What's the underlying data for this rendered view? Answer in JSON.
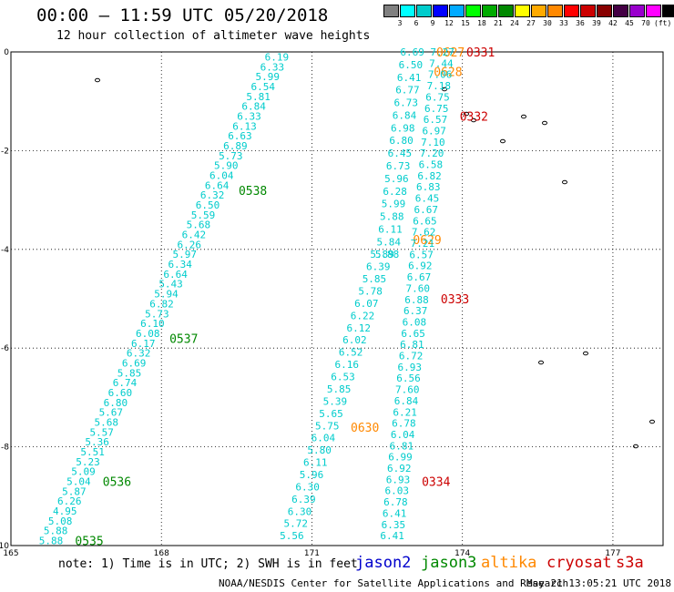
{
  "title": "00:00 — 11:59 UTC 05/20/2018",
  "subtitle": "12 hour collection of altimeter wave heights",
  "colorbar": {
    "colors": [
      "#808080",
      "#00ffff",
      "#00cccc",
      "#0000ff",
      "#00aaff",
      "#00ff00",
      "#00aa00",
      "#008800",
      "#ffff00",
      "#ffaa00",
      "#ff8800",
      "#ff0000",
      "#cc0000",
      "#880000",
      "#440044",
      "#9900cc",
      "#ff00ff",
      "#000000"
    ],
    "labels": [
      "3",
      "6",
      "9",
      "12",
      "15",
      "18",
      "21",
      "24",
      "27",
      "30",
      "33",
      "36",
      "39",
      "42",
      "45",
      "70",
      "(ft)"
    ]
  },
  "note": "note: 1) Time is in UTC; 2) SWH is in feet",
  "missions": [
    {
      "name": "jason2",
      "color": "#0000cc"
    },
    {
      "name": "jason3",
      "color": "#008800"
    },
    {
      "name": "altika",
      "color": "#ff8800"
    },
    {
      "name": "cryosat",
      "color": "#cc0000"
    },
    {
      "name": "s3a",
      "color": "#cc0000"
    }
  ],
  "credit": "NOAA/NESDIS Center for Satellite Applications and Research",
  "timestamp": "May 21 13:05:21 UTC 2018",
  "chart_data": {
    "type": "scatter",
    "x_ticks": [
      "165",
      "168",
      "171",
      "174",
      "177"
    ],
    "y_ticks": [
      "0",
      "-2",
      "-4",
      "-6",
      "-8",
      "-10"
    ],
    "xlim": [
      165,
      178
    ],
    "ylim": [
      -10,
      0
    ],
    "tracks": [
      {
        "mission": "jason3",
        "color": "#00cccc",
        "start": [
          170.3,
          -0.1
        ],
        "end": [
          165.8,
          -9.9
        ],
        "values": [
          "6.19",
          "6.33",
          "5.99",
          "6.54",
          "5.81",
          "6.84",
          "6.33",
          "6.13",
          "6.63",
          "6.89",
          "5.73",
          "5.90",
          "6.04",
          "6.64",
          "6.32",
          "6.50",
          "5.59",
          "5.68",
          "6.42",
          "6.26",
          "5.97",
          "6.34",
          "6.64",
          "5.43",
          "5.94",
          "6.82",
          "5.73",
          "6.10",
          "6.08",
          "6.17",
          "6.32",
          "6.69",
          "5.85",
          "6.74",
          "6.60",
          "6.80",
          "5.67",
          "5.68",
          "5.57",
          "5.36",
          "5.51",
          "5.23",
          "5.09",
          "5.04",
          "5.87",
          "6.26",
          "4.95",
          "5.08",
          "5.88",
          "5.88"
        ],
        "times": [
          {
            "label": "0538",
            "lat": -2.8
          },
          {
            "label": "0537",
            "lat": -5.8
          },
          {
            "label": "0536",
            "lat": -8.7
          },
          {
            "label": "0535",
            "lat": -9.9
          }
        ],
        "time_color": "#008800"
      },
      {
        "mission": "altika-1",
        "color": "#00cccc",
        "start": [
          173.0,
          0.0
        ],
        "end": [
          172.5,
          -4.1
        ],
        "values": [
          "6.69",
          "6.50",
          "6.41",
          "6.77",
          "6.73",
          "6.84",
          "6.98",
          "6.80",
          "6.45",
          "6.73",
          "5.96",
          "6.28",
          "5.99",
          "5.88",
          "6.11",
          "5.84",
          "5.88"
        ],
        "times": [
          {
            "label": "0627",
            "lat": 0.0
          },
          {
            "label": "0628",
            "lat": -0.4
          },
          {
            "label": "0629",
            "lat": -3.8
          }
        ],
        "time_color": "#ff8800"
      },
      {
        "mission": "altika-2",
        "color": "#00cccc",
        "start": [
          172.4,
          -4.1
        ],
        "end": [
          170.6,
          -9.8
        ],
        "values": [
          "5.89",
          "6.39",
          "5.85",
          "5.78",
          "6.07",
          "6.22",
          "6.12",
          "6.02",
          "6.52",
          "6.16",
          "6.53",
          "5.85",
          "5.39",
          "5.65",
          "5.75",
          "6.04",
          "5.80",
          "6.11",
          "5.96",
          "6.30",
          "6.39",
          "6.30",
          "5.72",
          "5.56"
        ],
        "times": [
          {
            "label": "0630",
            "lat": -7.6
          }
        ],
        "time_color": "#ff8800"
      },
      {
        "mission": "cryosat",
        "color": "#00cccc",
        "start": [
          173.6,
          0.0
        ],
        "end": [
          172.6,
          -9.8
        ],
        "values": [
          "7.27",
          "7.44",
          "7.06",
          "7.18",
          "6.75",
          "6.75",
          "6.57",
          "6.97",
          "7.10",
          "7.20",
          "6.58",
          "6.82",
          "6.83",
          "6.45",
          "6.67",
          "6.65",
          "7.62",
          "7.21",
          "6.57",
          "6.92",
          "6.67",
          "7.60",
          "6.88",
          "6.37",
          "6.08",
          "6.65",
          "6.81",
          "6.72",
          "6.93",
          "6.56",
          "7.60",
          "6.84",
          "6.21",
          "6.78",
          "6.04",
          "6.81",
          "6.99",
          "6.92",
          "6.93",
          "6.03",
          "6.78",
          "6.41",
          "6.35",
          "6.41"
        ],
        "times": [
          {
            "label": "0331",
            "lat": 0.0
          },
          {
            "label": "0332",
            "lat": -1.3
          },
          {
            "label": "0333",
            "lat": -5.0
          },
          {
            "label": "0334",
            "lat": -8.7
          }
        ],
        "time_color": "#cc0000"
      }
    ]
  }
}
